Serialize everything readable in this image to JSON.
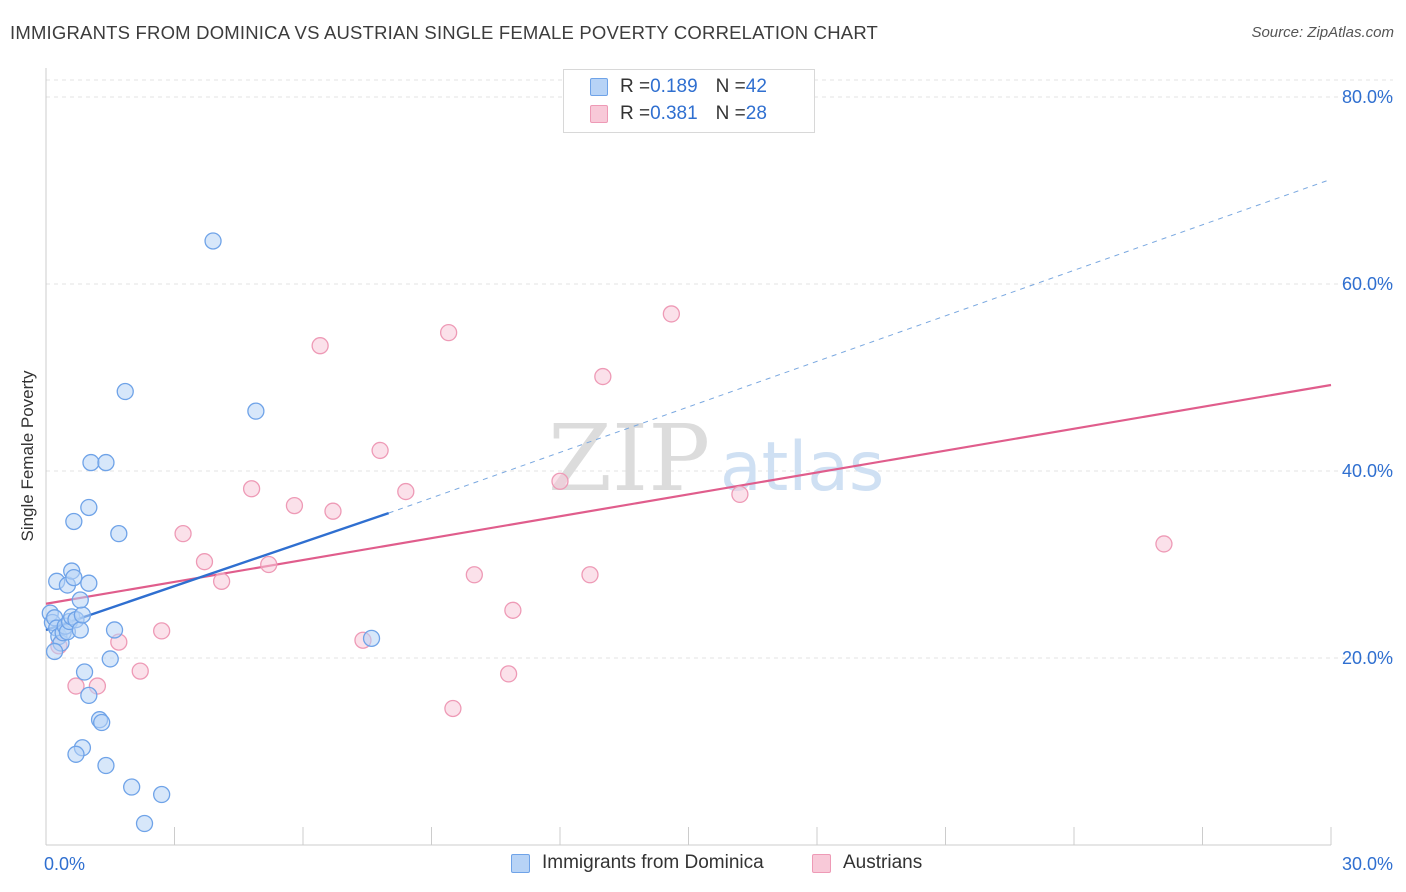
{
  "chart_data": {
    "type": "scatter",
    "title": "IMMIGRANTS FROM DOMINICA VS AUSTRIAN SINGLE FEMALE POVERTY CORRELATION CHART",
    "source": "Source: ZipAtlas.com",
    "ylabel": "Single Female Poverty",
    "xlabel": "",
    "xlim": [
      0,
      30
    ],
    "ylim": [
      0,
      80
    ],
    "x_tick_labels": {
      "min": "0.0%",
      "max": "30.0%"
    },
    "y_tick_labels": [
      {
        "value": 80,
        "label": "80.0%"
      },
      {
        "value": 60,
        "label": "60.0%"
      },
      {
        "value": 40,
        "label": "40.0%"
      },
      {
        "value": 20,
        "label": "20.0%"
      }
    ],
    "watermark": {
      "zip": "ZIP",
      "atlas": "atlas"
    },
    "legend": [
      {
        "r_label": "R = ",
        "r_value": "0.189",
        "n_label": "N = ",
        "n_value": "42"
      },
      {
        "r_label": "R = ",
        "r_value": "0.381",
        "n_label": "N = ",
        "n_value": "28"
      }
    ],
    "series": [
      {
        "name": "Immigrants from Dominica",
        "color": "#6fa3e8",
        "fill": "#b7d3f6",
        "line_color": "#2f6fd0",
        "trend": {
          "x0": 0,
          "y0": 23.0,
          "x1": 8.0,
          "y1": 35.5,
          "dash_x1": 30.0,
          "dash_y1": 71.2
        },
        "points": [
          [
            0.1,
            24.8
          ],
          [
            0.15,
            23.8
          ],
          [
            0.2,
            24.3
          ],
          [
            0.25,
            23.2
          ],
          [
            0.3,
            22.3
          ],
          [
            0.35,
            21.6
          ],
          [
            0.4,
            22.7
          ],
          [
            0.45,
            23.4
          ],
          [
            0.5,
            22.8
          ],
          [
            0.55,
            23.9
          ],
          [
            0.6,
            24.4
          ],
          [
            0.7,
            24.1
          ],
          [
            0.8,
            23.0
          ],
          [
            0.85,
            24.6
          ],
          [
            0.25,
            28.2
          ],
          [
            0.5,
            27.8
          ],
          [
            0.6,
            29.3
          ],
          [
            0.65,
            28.6
          ],
          [
            1.0,
            28.0
          ],
          [
            0.8,
            26.2
          ],
          [
            0.65,
            34.6
          ],
          [
            1.0,
            36.1
          ],
          [
            1.7,
            33.3
          ],
          [
            1.05,
            40.9
          ],
          [
            1.4,
            40.9
          ],
          [
            1.85,
            48.5
          ],
          [
            3.9,
            64.6
          ],
          [
            4.9,
            46.4
          ],
          [
            7.6,
            22.1
          ],
          [
            1.6,
            23.0
          ],
          [
            1.5,
            19.9
          ],
          [
            0.2,
            20.7
          ],
          [
            0.9,
            18.5
          ],
          [
            1.0,
            16.0
          ],
          [
            1.25,
            13.4
          ],
          [
            1.3,
            13.1
          ],
          [
            0.85,
            10.4
          ],
          [
            0.7,
            9.7
          ],
          [
            1.4,
            8.5
          ],
          [
            2.0,
            6.2
          ],
          [
            2.7,
            5.4
          ],
          [
            2.3,
            2.3
          ]
        ]
      },
      {
        "name": "Austrians",
        "color": "#ee9ab6",
        "fill": "#f8c9d8",
        "line_color": "#e05d8c",
        "trend": {
          "x0": 0,
          "y0": 25.8,
          "x1": 30.0,
          "y1": 49.2
        },
        "points": [
          [
            0.3,
            21.3
          ],
          [
            0.7,
            17.0
          ],
          [
            1.2,
            17.0
          ],
          [
            1.7,
            21.7
          ],
          [
            2.2,
            18.6
          ],
          [
            2.7,
            22.9
          ],
          [
            3.2,
            33.3
          ],
          [
            3.7,
            30.3
          ],
          [
            4.1,
            28.2
          ],
          [
            4.8,
            38.1
          ],
          [
            5.2,
            30.0
          ],
          [
            5.8,
            36.3
          ],
          [
            6.4,
            53.4
          ],
          [
            6.7,
            35.7
          ],
          [
            7.4,
            21.9
          ],
          [
            7.8,
            42.2
          ],
          [
            8.4,
            37.8
          ],
          [
            9.4,
            54.8
          ],
          [
            9.5,
            14.6
          ],
          [
            10.0,
            28.9
          ],
          [
            10.8,
            18.3
          ],
          [
            10.9,
            25.1
          ],
          [
            12.0,
            38.9
          ],
          [
            12.7,
            28.9
          ],
          [
            13.0,
            50.1
          ],
          [
            14.6,
            56.8
          ],
          [
            16.2,
            37.5
          ],
          [
            26.1,
            32.2
          ]
        ]
      }
    ]
  }
}
